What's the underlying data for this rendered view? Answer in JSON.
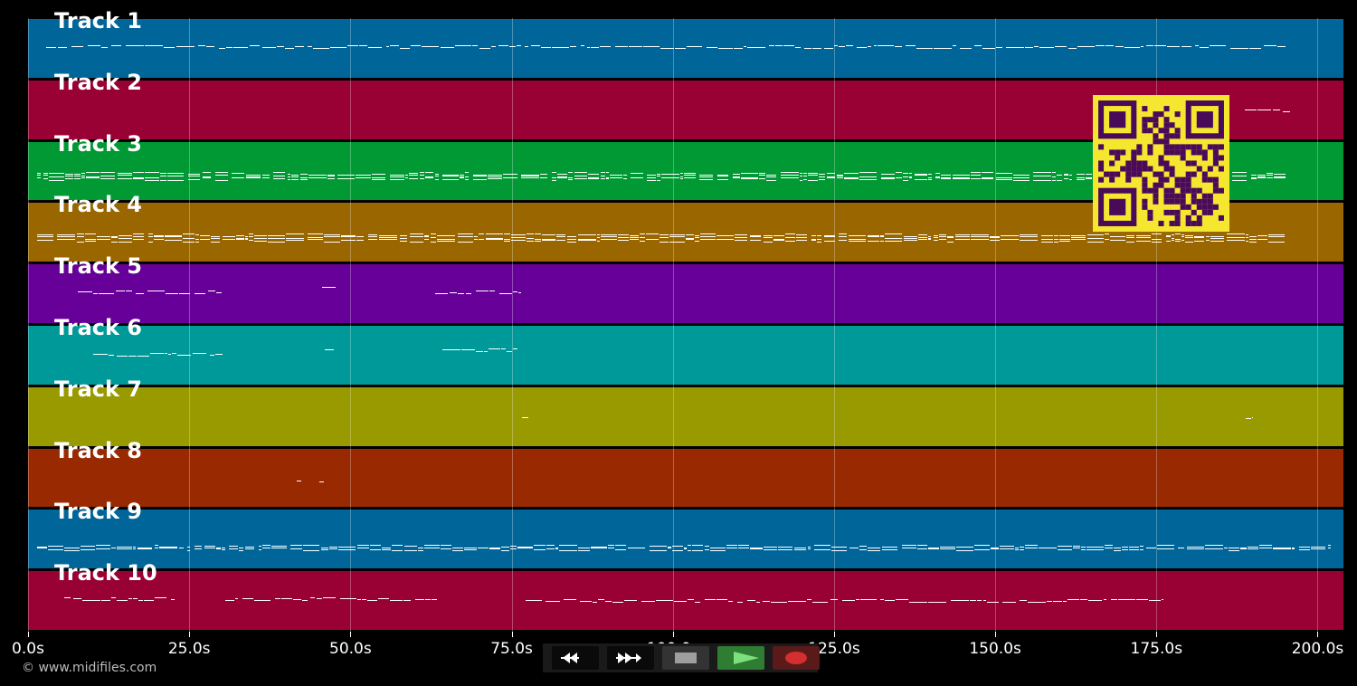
{
  "tracks": [
    {
      "label": "Track 1",
      "color": "#006699"
    },
    {
      "label": "Track 2",
      "color": "#990033"
    },
    {
      "label": "Track 3",
      "color": "#009933"
    },
    {
      "label": "Track 4",
      "color": "#996600"
    },
    {
      "label": "Track 5",
      "color": "#660099"
    },
    {
      "label": "Track 6",
      "color": "#009999"
    },
    {
      "label": "Track 7",
      "color": "#999900"
    },
    {
      "label": "Track 8",
      "color": "#992900"
    },
    {
      "label": "Track 9",
      "color": "#006699"
    },
    {
      "label": "Track 10",
      "color": "#990033"
    }
  ],
  "axis": {
    "min": 0,
    "max": 204,
    "ticks": [
      {
        "value": 0,
        "label": "0.0s"
      },
      {
        "value": 25,
        "label": "25.0s"
      },
      {
        "value": 50,
        "label": "50.0s"
      },
      {
        "value": 75,
        "label": "75.0s"
      },
      {
        "value": 100,
        "label": "100.0s"
      },
      {
        "value": 125,
        "label": "125.0s"
      },
      {
        "value": 150,
        "label": "150.0s"
      },
      {
        "value": 175,
        "label": "175.0s"
      },
      {
        "value": 200,
        "label": "200.0s"
      }
    ]
  },
  "copyright": "© www.midifiles.com",
  "transport": {
    "rewind_icon": "rewind-icon",
    "forward_icon": "fast-forward-icon",
    "stop_icon": "stop-icon",
    "play_icon": "play-icon",
    "record_icon": "record-icon"
  },
  "colors": {
    "play_button": "#2e7d32",
    "record_button": "#5a1a1a",
    "qr_background": "#f5e62f",
    "qr_foreground": "#4a0a5a"
  }
}
